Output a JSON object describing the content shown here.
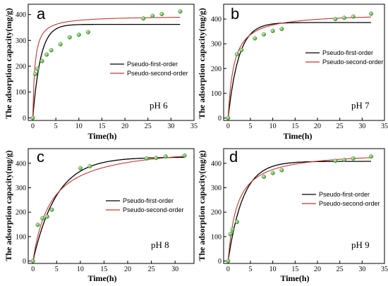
{
  "colors": {
    "first_order": "#000000",
    "second_order": "#c0392b",
    "points": "#6fc15a"
  },
  "chart_data": [
    {
      "type": "scatter",
      "panel_letter": "a",
      "annotation": "pH 6",
      "xlabel": "Time(h)",
      "ylabel": "The adsorption capacity(mg/g)",
      "xlim": [
        -1,
        35
      ],
      "ylim": [
        -10,
        440
      ],
      "xticks": [
        0,
        5,
        10,
        15,
        20,
        25,
        30,
        35
      ],
      "yticks": [
        0,
        100,
        200,
        300,
        400
      ],
      "legend_position": "center-right",
      "legend": [
        "Pseudo-first-order",
        "Pseudo-second-order"
      ],
      "points": {
        "x": [
          0,
          0.5,
          1,
          2,
          3,
          4,
          6,
          8,
          10,
          12,
          24,
          26,
          28,
          32
        ],
        "y": [
          0,
          170,
          190,
          220,
          245,
          262,
          285,
          312,
          322,
          332,
          385,
          395,
          402,
          412
        ]
      },
      "first_order": {
        "qe": 362,
        "k": 0.6
      },
      "second_order": {
        "qe": 395,
        "k": 0.0055
      }
    },
    {
      "type": "scatter",
      "panel_letter": "b",
      "annotation": "pH 7",
      "xlabel": "Time(h)",
      "ylabel": "The adsorption capacity(mg/g)",
      "xlim": [
        -1,
        35
      ],
      "ylim": [
        -10,
        460
      ],
      "xticks": [
        0,
        5,
        10,
        15,
        20,
        25,
        30,
        35
      ],
      "yticks": [
        0,
        100,
        200,
        300,
        400
      ],
      "legend_position": "center-right",
      "legend": [
        "Pseudo-first-order",
        "Pseudo-second-order"
      ],
      "points": {
        "x": [
          0,
          2,
          3,
          6,
          8,
          10,
          12,
          24,
          26,
          28,
          32
        ],
        "y": [
          0,
          258,
          275,
          322,
          338,
          352,
          360,
          400,
          405,
          410,
          422
        ]
      },
      "first_order": {
        "qe": 386,
        "k": 0.42
      },
      "second_order": {
        "qe": 425,
        "k": 0.0018
      }
    },
    {
      "type": "scatter",
      "panel_letter": "c",
      "annotation": "pH 8",
      "xlabel": "Time(h)",
      "ylabel": "The adsorption capacity(mg/g)",
      "xlim": [
        -1,
        34
      ],
      "ylim": [
        -10,
        460
      ],
      "xticks": [
        0,
        5,
        10,
        15,
        20,
        25,
        30
      ],
      "yticks": [
        0,
        100,
        200,
        300,
        400
      ],
      "legend_position": "center-right",
      "legend": [
        "Pseudo-first-order",
        "Pseudo-second-order"
      ],
      "points": {
        "x": [
          0,
          1,
          2,
          3,
          4,
          10,
          12,
          24,
          26,
          28,
          32
        ],
        "y": [
          0,
          148,
          175,
          182,
          210,
          380,
          388,
          420,
          422,
          428,
          432
        ]
      },
      "first_order": {
        "qe": 425,
        "k": 0.2
      },
      "second_order": {
        "qe": 480,
        "k": 0.00055
      }
    },
    {
      "type": "scatter",
      "panel_letter": "d",
      "annotation": "pH 9",
      "xlabel": "Time(h)",
      "ylabel": "The adsorption capacity(mg/g)",
      "xlim": [
        -1,
        35
      ],
      "ylim": [
        -10,
        460
      ],
      "xticks": [
        0,
        5,
        10,
        15,
        20,
        25,
        30,
        35
      ],
      "yticks": [
        0,
        100,
        200,
        300,
        400
      ],
      "legend_position": "center-right",
      "legend": [
        "Pseudo-first-order",
        "Pseudo-second-order"
      ],
      "points": {
        "x": [
          0,
          0.5,
          1,
          2,
          8,
          10,
          12,
          24,
          26,
          28,
          32
        ],
        "y": [
          0,
          110,
          130,
          160,
          345,
          360,
          372,
          410,
          414,
          420,
          428
        ]
      },
      "first_order": {
        "qe": 408,
        "k": 0.3
      },
      "second_order": {
        "qe": 450,
        "k": 0.0011
      }
    }
  ]
}
